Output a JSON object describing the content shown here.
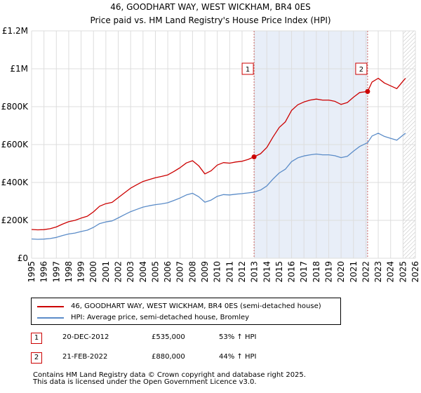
{
  "chart_data": {
    "type": "line",
    "title": "46, GOODHART WAY, WEST WICKHAM, BR4 0ES",
    "subtitle": "Price paid vs. HM Land Registry's House Price Index (HPI)",
    "xlim": [
      1995,
      2026
    ],
    "ylim": [
      0,
      1200000
    ],
    "x_ticks": [
      1995,
      1996,
      1997,
      1998,
      1999,
      2000,
      2001,
      2002,
      2003,
      2004,
      2005,
      2006,
      2007,
      2008,
      2009,
      2010,
      2011,
      2012,
      2013,
      2014,
      2015,
      2016,
      2017,
      2018,
      2019,
      2020,
      2021,
      2022,
      2023,
      2024,
      2025,
      2026
    ],
    "y_ticks": [
      0,
      200000,
      400000,
      600000,
      800000,
      1000000,
      1200000
    ],
    "y_tick_labels": [
      "£0",
      "£200K",
      "£400K",
      "£600K",
      "£800K",
      "£1M",
      "£1.2M"
    ],
    "shaded_span": [
      2012.97,
      2022.14
    ],
    "future_hatch_from": 2025.0,
    "series": [
      {
        "name": "46, GOODHART WAY, WEST WICKHAM, BR4 0ES (semi-detached house)",
        "color": "#cc0000",
        "points": [
          [
            1995.0,
            152000
          ],
          [
            1995.5,
            150000
          ],
          [
            1996.0,
            151000
          ],
          [
            1996.5,
            156000
          ],
          [
            1997.0,
            165000
          ],
          [
            1997.5,
            180000
          ],
          [
            1998.0,
            193000
          ],
          [
            1998.5,
            200000
          ],
          [
            1999.0,
            212000
          ],
          [
            1999.5,
            222000
          ],
          [
            2000.0,
            245000
          ],
          [
            2000.5,
            275000
          ],
          [
            2001.0,
            288000
          ],
          [
            2001.5,
            295000
          ],
          [
            2002.0,
            320000
          ],
          [
            2002.5,
            345000
          ],
          [
            2003.0,
            370000
          ],
          [
            2003.5,
            388000
          ],
          [
            2004.0,
            405000
          ],
          [
            2004.5,
            415000
          ],
          [
            2005.0,
            425000
          ],
          [
            2005.5,
            432000
          ],
          [
            2006.0,
            440000
          ],
          [
            2006.5,
            458000
          ],
          [
            2007.0,
            478000
          ],
          [
            2007.5,
            503000
          ],
          [
            2008.0,
            515000
          ],
          [
            2008.5,
            488000
          ],
          [
            2009.0,
            445000
          ],
          [
            2009.5,
            462000
          ],
          [
            2010.0,
            492000
          ],
          [
            2010.5,
            505000
          ],
          [
            2011.0,
            502000
          ],
          [
            2011.5,
            508000
          ],
          [
            2012.0,
            512000
          ],
          [
            2012.5,
            522000
          ],
          [
            2012.97,
            535000
          ],
          [
            2013.5,
            552000
          ],
          [
            2014.0,
            585000
          ],
          [
            2014.5,
            640000
          ],
          [
            2015.0,
            690000
          ],
          [
            2015.5,
            720000
          ],
          [
            2016.0,
            780000
          ],
          [
            2016.5,
            810000
          ],
          [
            2017.0,
            825000
          ],
          [
            2017.5,
            835000
          ],
          [
            2018.0,
            840000
          ],
          [
            2018.5,
            835000
          ],
          [
            2019.0,
            835000
          ],
          [
            2019.5,
            828000
          ],
          [
            2020.0,
            812000
          ],
          [
            2020.5,
            822000
          ],
          [
            2021.0,
            850000
          ],
          [
            2021.5,
            875000
          ],
          [
            2022.14,
            880000
          ],
          [
            2022.5,
            930000
          ],
          [
            2023.0,
            950000
          ],
          [
            2023.5,
            925000
          ],
          [
            2024.0,
            910000
          ],
          [
            2024.5,
            895000
          ],
          [
            2025.0,
            935000
          ],
          [
            2025.2,
            950000
          ]
        ]
      },
      {
        "name": "HPI: Average price, semi-detached house, Bromley",
        "color": "#5b8cc8",
        "points": [
          [
            1995.0,
            102000
          ],
          [
            1995.5,
            100000
          ],
          [
            1996.0,
            101000
          ],
          [
            1996.5,
            104000
          ],
          [
            1997.0,
            110000
          ],
          [
            1997.5,
            120000
          ],
          [
            1998.0,
            128000
          ],
          [
            1998.5,
            133000
          ],
          [
            1999.0,
            141000
          ],
          [
            1999.5,
            148000
          ],
          [
            2000.0,
            163000
          ],
          [
            2000.5,
            183000
          ],
          [
            2001.0,
            192000
          ],
          [
            2001.5,
            197000
          ],
          [
            2002.0,
            213000
          ],
          [
            2002.5,
            230000
          ],
          [
            2003.0,
            246000
          ],
          [
            2003.5,
            258000
          ],
          [
            2004.0,
            270000
          ],
          [
            2004.5,
            277000
          ],
          [
            2005.0,
            283000
          ],
          [
            2005.5,
            287000
          ],
          [
            2006.0,
            293000
          ],
          [
            2006.5,
            305000
          ],
          [
            2007.0,
            318000
          ],
          [
            2007.5,
            334000
          ],
          [
            2008.0,
            343000
          ],
          [
            2008.5,
            325000
          ],
          [
            2009.0,
            296000
          ],
          [
            2009.5,
            307000
          ],
          [
            2010.0,
            327000
          ],
          [
            2010.5,
            336000
          ],
          [
            2011.0,
            334000
          ],
          [
            2011.5,
            338000
          ],
          [
            2012.0,
            341000
          ],
          [
            2012.5,
            345000
          ],
          [
            2012.97,
            349000
          ],
          [
            2013.5,
            360000
          ],
          [
            2014.0,
            382000
          ],
          [
            2014.5,
            418000
          ],
          [
            2015.0,
            450000
          ],
          [
            2015.5,
            470000
          ],
          [
            2016.0,
            510000
          ],
          [
            2016.5,
            530000
          ],
          [
            2017.0,
            540000
          ],
          [
            2017.5,
            546000
          ],
          [
            2018.0,
            550000
          ],
          [
            2018.5,
            546000
          ],
          [
            2019.0,
            546000
          ],
          [
            2019.5,
            541000
          ],
          [
            2020.0,
            531000
          ],
          [
            2020.5,
            538000
          ],
          [
            2021.0,
            565000
          ],
          [
            2021.5,
            590000
          ],
          [
            2022.14,
            610000
          ],
          [
            2022.5,
            645000
          ],
          [
            2023.0,
            660000
          ],
          [
            2023.5,
            643000
          ],
          [
            2024.0,
            633000
          ],
          [
            2024.5,
            623000
          ],
          [
            2025.0,
            650000
          ],
          [
            2025.2,
            660000
          ]
        ]
      }
    ],
    "annotations": [
      {
        "label": "1",
        "x": 2012.97,
        "y": 535000,
        "box_y": 1000000
      },
      {
        "label": "2",
        "x": 2022.14,
        "y": 880000,
        "box_y": 1000000
      }
    ]
  },
  "legend": {
    "items": [
      {
        "label": "46, GOODHART WAY, WEST WICKHAM, BR4 0ES (semi-detached house)",
        "color": "#cc0000"
      },
      {
        "label": "HPI: Average price, semi-detached house, Bromley",
        "color": "#5b8cc8"
      }
    ]
  },
  "transactions": [
    {
      "num": "1",
      "date": "20-DEC-2012",
      "price": "£535,000",
      "hpi": "53% ↑ HPI"
    },
    {
      "num": "2",
      "date": "21-FEB-2022",
      "price": "£880,000",
      "hpi": "44% ↑ HPI"
    }
  ],
  "footer": {
    "line1": "Contains HM Land Registry data © Crown copyright and database right 2025.",
    "line2": "This data is licensed under the Open Government Licence v3.0."
  }
}
